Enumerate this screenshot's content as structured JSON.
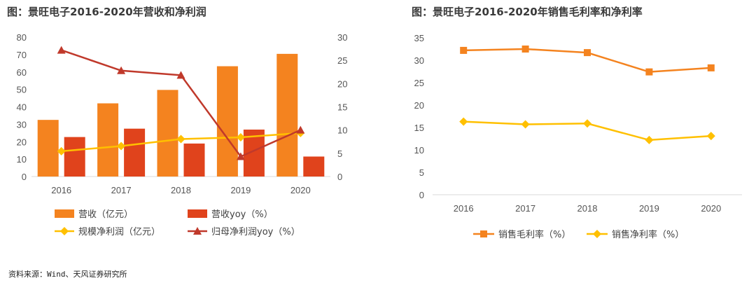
{
  "chart_data": [
    {
      "type": "bar+line",
      "title": "图：景旺电子2016-2020年营收和净利润",
      "categories": [
        "2016",
        "2017",
        "2018",
        "2019",
        "2020"
      ],
      "left_axis": {
        "ylim": [
          0,
          80
        ],
        "ticks": [
          "0",
          "10",
          "20",
          "30",
          "40",
          "50",
          "60",
          "70",
          "80"
        ]
      },
      "right_axis": {
        "ylim": [
          0,
          30
        ],
        "ticks": [
          "0",
          "5",
          "10",
          "15",
          "20",
          "25",
          "30"
        ]
      },
      "series": [
        {
          "name": "营收（亿元）",
          "type": "bar",
          "axis": "left",
          "color": "#F4831F",
          "values": [
            32.5,
            42,
            49.7,
            63.3,
            70.4
          ]
        },
        {
          "name": "营收yoy（%）",
          "type": "bar",
          "axis": "right",
          "color": "#E0431C",
          "values": [
            8.5,
            10.3,
            7.1,
            10.1,
            4.3
          ]
        },
        {
          "name": "规模净利润（亿元）",
          "type": "line",
          "axis": "left",
          "marker": "diamond",
          "color": "#FFC000",
          "values": [
            14.5,
            17.5,
            21.5,
            22.5,
            25
          ]
        },
        {
          "name": "归母净利润yoy（%）",
          "type": "line",
          "axis": "right",
          "marker": "triangle",
          "color": "#C0392B",
          "values": [
            27.2,
            22.8,
            21.8,
            4.3,
            10
          ]
        }
      ]
    },
    {
      "type": "line",
      "title": "图：景旺电子2016-2020年销售毛利率和净利率",
      "categories": [
        "2016",
        "2017",
        "2018",
        "2019",
        "2020"
      ],
      "ylim": [
        0,
        35
      ],
      "ticks": [
        "0",
        "5",
        "10",
        "15",
        "20",
        "25",
        "30",
        "35"
      ],
      "series": [
        {
          "name": "销售毛利率（%）",
          "marker": "square",
          "color": "#F4831F",
          "values": [
            32.2,
            32.5,
            31.7,
            27.4,
            28.3
          ]
        },
        {
          "name": "销售净利率（%）",
          "marker": "diamond",
          "color": "#FFC000",
          "values": [
            16.3,
            15.7,
            15.9,
            12.2,
            13.1
          ]
        }
      ]
    }
  ],
  "source_text": "资料来源：Wind、天风证券研究所"
}
